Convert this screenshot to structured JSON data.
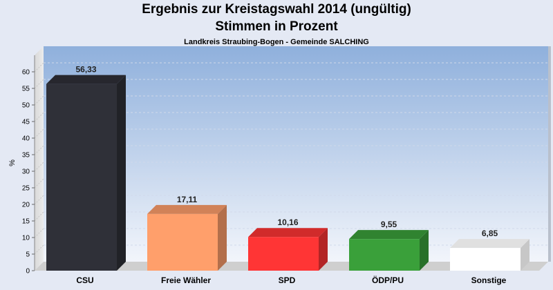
{
  "header": {
    "title_line1": "Ergebnis zur Kreistagswahl 2014 (ungültig)",
    "title_line2": "Stimmen in Prozent",
    "subtitle": "Landkreis Straubing-Bogen - Gemeinde SALCHING"
  },
  "chart_data": {
    "type": "bar",
    "title": "Ergebnis zur Kreistagswahl 2014 (ungültig)",
    "subtitle": "Stimmen in Prozent",
    "ylabel": "%",
    "xlabel": "",
    "ylim": [
      0,
      65
    ],
    "yticks": [
      0,
      5,
      10,
      15,
      20,
      25,
      30,
      35,
      40,
      45,
      50,
      55,
      60
    ],
    "grid": true,
    "categories": [
      "CSU",
      "Freie Wähler",
      "SPD",
      "ÖDP/PU",
      "Sonstige"
    ],
    "values": [
      56.33,
      17.11,
      10.16,
      9.55,
      6.85
    ],
    "value_labels": [
      "56,33",
      "17,11",
      "10,16",
      "9,55",
      "6,85"
    ],
    "colors": [
      "#2f3038",
      "#ff9f6b",
      "#ff3535",
      "#3aa03a",
      "#ffffff"
    ]
  }
}
